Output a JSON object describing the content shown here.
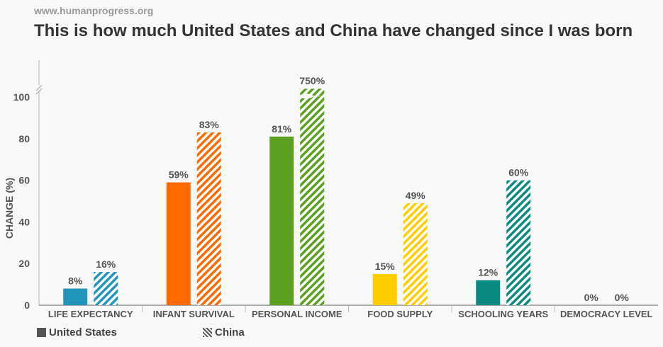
{
  "source": "www.humanprogress.org",
  "title": "This is how much United States and China have changed since I was born",
  "chart_data": {
    "type": "bar",
    "title": "This is how much United States and China have changed since I was born",
    "xlabel": "",
    "ylabel": "CHANGE (%)",
    "ylim": [
      0,
      100
    ],
    "yticks": [
      "0",
      "20",
      "40",
      "60",
      "80",
      "100"
    ],
    "axis_break": true,
    "categories": [
      "LIFE EXPECTANCY",
      "INFANT SURVIVAL",
      "PERSONAL INCOME",
      "FOOD SUPPLY",
      "SCHOOLING YEARS",
      "DEMOCRACY LEVEL"
    ],
    "colors": [
      "#2196bb",
      "#ff6a00",
      "#5ba01e",
      "#ffcc00",
      "#0a8a80",
      "#888888"
    ],
    "series": [
      {
        "name": "United States",
        "pattern": "solid",
        "values": [
          8,
          59,
          81,
          15,
          12,
          0
        ],
        "labels": [
          "8%",
          "59%",
          "81%",
          "15%",
          "12%",
          "0%"
        ]
      },
      {
        "name": "China",
        "pattern": "hatched",
        "values": [
          16,
          83,
          750,
          49,
          60,
          0
        ],
        "labels": [
          "16%",
          "83%",
          "750%",
          "49%",
          "60%",
          "0%"
        ]
      }
    ],
    "legend": "bottom-left",
    "grid": false
  }
}
